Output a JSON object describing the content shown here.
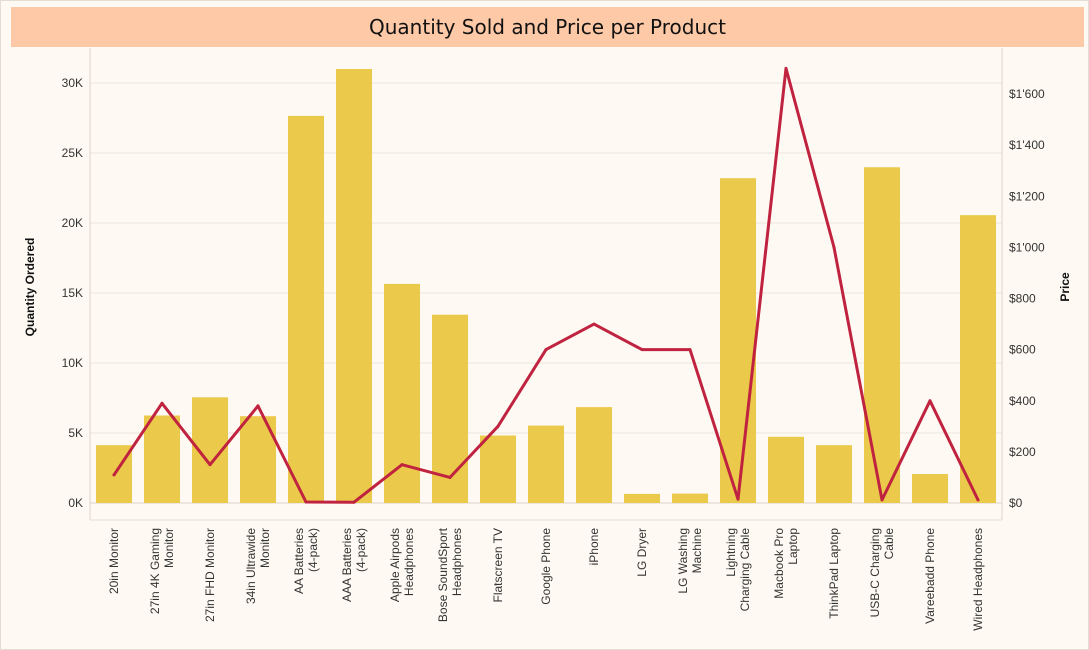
{
  "chart_data": {
    "type": "bar+line",
    "title": "Quantity Sold and Price per Product",
    "ylabel": "Quantity Ordered",
    "y2label": "Price",
    "ylim": [
      0,
      32500
    ],
    "y2lim": [
      0,
      1780
    ],
    "yticks": [
      {
        "v": 0,
        "label": "0K"
      },
      {
        "v": 5000,
        "label": "5K"
      },
      {
        "v": 10000,
        "label": "10K"
      },
      {
        "v": 15000,
        "label": "15K"
      },
      {
        "v": 20000,
        "label": "20K"
      },
      {
        "v": 25000,
        "label": "25K"
      },
      {
        "v": 30000,
        "label": "30K"
      }
    ],
    "y2ticks": [
      {
        "v": 0,
        "label": "$0"
      },
      {
        "v": 200,
        "label": "$200"
      },
      {
        "v": 400,
        "label": "$400"
      },
      {
        "v": 600,
        "label": "$600"
      },
      {
        "v": 800,
        "label": "$800"
      },
      {
        "v": 1000,
        "label": "$1'000"
      },
      {
        "v": 1200,
        "label": "$1'200"
      },
      {
        "v": 1400,
        "label": "$1'400"
      },
      {
        "v": 1600,
        "label": "$1'600"
      }
    ],
    "categories": [
      [
        "20in Monitor"
      ],
      [
        "27in 4K Gaming",
        "Monitor"
      ],
      [
        "27in FHD Monitor"
      ],
      [
        "34in Ultrawide",
        "Monitor"
      ],
      [
        "AA Batteries",
        "(4-pack)"
      ],
      [
        "AAA Batteries",
        "(4-pack)"
      ],
      [
        "Apple Airpods",
        "Headphones"
      ],
      [
        "Bose SoundSport",
        "Headphones"
      ],
      [
        "Flatscreen TV"
      ],
      [
        "Google Phone"
      ],
      [
        "iPhone"
      ],
      [
        "LG Dryer"
      ],
      [
        "LG Washing",
        "Machine"
      ],
      [
        "Lightning",
        "Charging Cable"
      ],
      [
        "Macbook Pro",
        "Laptop"
      ],
      [
        "ThinkPad Laptop"
      ],
      [
        "USB-C Charging",
        "Cable"
      ],
      [
        "Vareebadd Phone"
      ],
      [
        "Wired Headphones"
      ]
    ],
    "series": [
      {
        "name": "Quantity Ordered",
        "kind": "bar",
        "color": "#ebc94a",
        "values": [
          4130,
          6250,
          7550,
          6200,
          27650,
          31000,
          15650,
          13450,
          4820,
          5530,
          6850,
          650,
          670,
          23200,
          4730,
          4130,
          23980,
          2070,
          20560
        ]
      },
      {
        "name": "Price",
        "kind": "line",
        "color": "#c0233f",
        "values": [
          110,
          390,
          150,
          380,
          4,
          3,
          150,
          100,
          300,
          600,
          700,
          600,
          600,
          15,
          1700,
          1000,
          12,
          400,
          12
        ]
      }
    ],
    "grid": true
  }
}
